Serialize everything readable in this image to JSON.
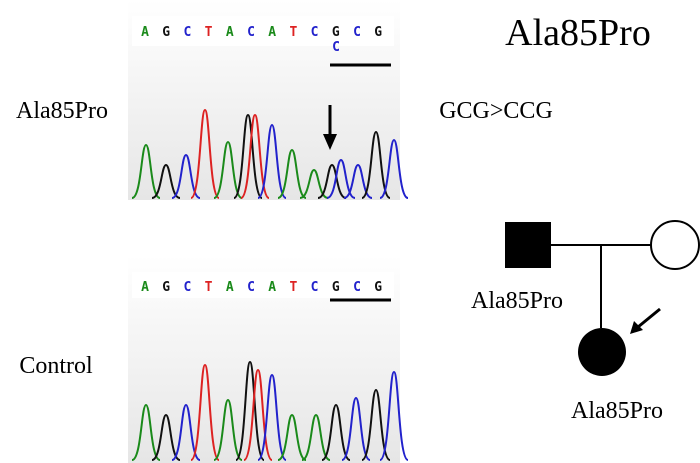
{
  "title": "Ala85Pro",
  "mutant_panel": {
    "label": "Ala85Pro",
    "change": "GCG>CCG",
    "bases": [
      "A",
      "G",
      "C",
      "T",
      "A",
      "C",
      "A",
      "T",
      "C",
      "G",
      "C",
      "G"
    ],
    "alt_base": "C"
  },
  "control_panel": {
    "label": "Control",
    "bases": [
      "A",
      "G",
      "C",
      "T",
      "A",
      "C",
      "A",
      "T",
      "C",
      "G",
      "C",
      "G"
    ]
  },
  "pedigree": {
    "father_label": "Ala85Pro",
    "proband_label": "Ala85Pro"
  }
}
